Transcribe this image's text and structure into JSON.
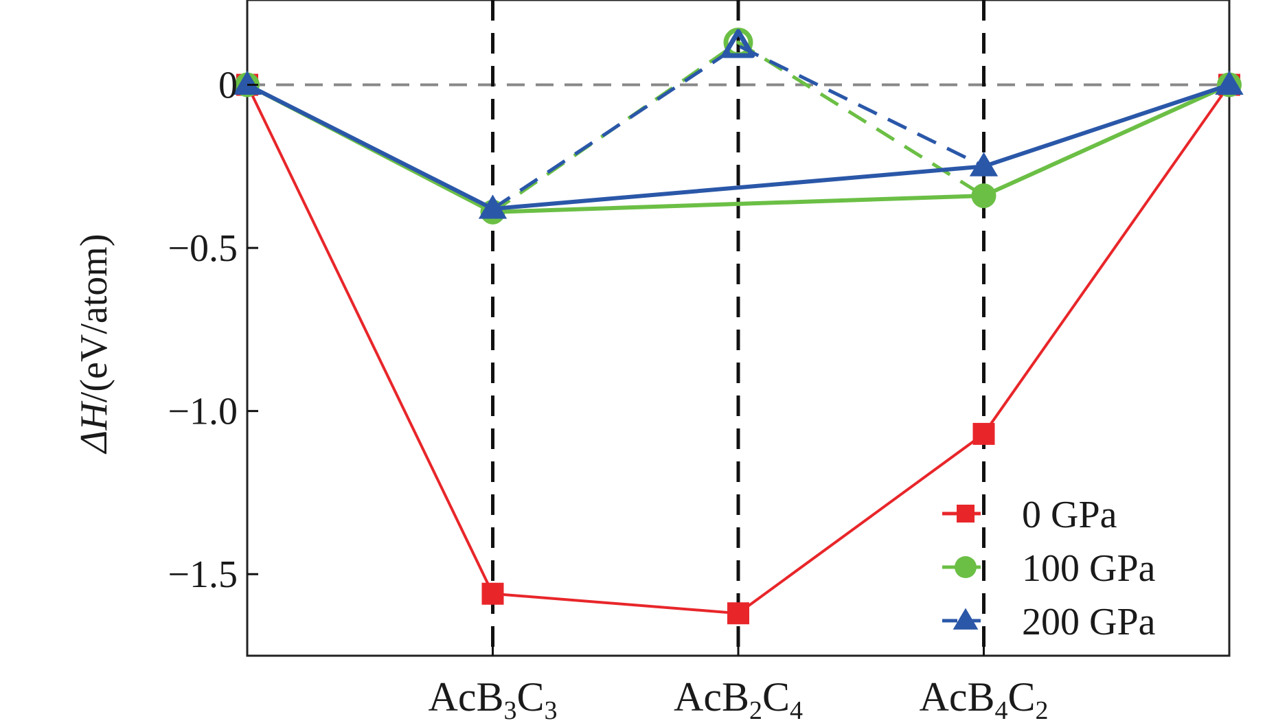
{
  "chart_data": {
    "type": "line",
    "title": "",
    "ylabel_symbol": "ΔH",
    "ylabel_unit": "/(eV/atom)",
    "xlabel": "",
    "ylim": [
      -1.75,
      0.26
    ],
    "yticks": [
      0,
      -0.5,
      -1.0,
      -1.5
    ],
    "ytick_labels": [
      "0",
      "−0.5",
      "−1.0",
      "−1.5"
    ],
    "x": [
      0,
      1,
      2,
      3,
      4
    ],
    "xlim": [
      0,
      4
    ],
    "categories": [
      {
        "base": "AcB",
        "n1": "3",
        "el2": "C",
        "n2": "3",
        "x": 1
      },
      {
        "base": "AcB",
        "n1": "2",
        "el2": "C",
        "n2": "4",
        "x": 2
      },
      {
        "base": "AcB",
        "n1": "4",
        "el2": "C",
        "n2": "2",
        "x": 3
      }
    ],
    "zero_line": true,
    "series": [
      {
        "name": "0 GPa",
        "color": "#e8262a",
        "marker": "square",
        "line_x": [
          0,
          1,
          2,
          3,
          4
        ],
        "line_y": [
          0,
          -1.56,
          -1.62,
          -1.07,
          0
        ],
        "points_x": [
          0,
          1,
          2,
          3,
          4
        ],
        "points_y": [
          0,
          -1.56,
          -1.62,
          -1.07,
          0
        ],
        "dashed_x": [],
        "dashed_y": []
      },
      {
        "name": "100 GPa",
        "color": "#6bbf45",
        "marker": "circle",
        "line_x": [
          0,
          1,
          3,
          4
        ],
        "line_y": [
          0,
          -0.39,
          -0.34,
          0
        ],
        "points_x": [
          0,
          1,
          2,
          3,
          4
        ],
        "points_y": [
          0,
          -0.39,
          0.13,
          -0.34,
          0
        ],
        "dashed_x": [
          1,
          2,
          3
        ],
        "dashed_y": [
          -0.39,
          0.13,
          -0.34
        ]
      },
      {
        "name": "200 GPa",
        "color": "#2a57a8",
        "marker": "triangle",
        "line_x": [
          0,
          1,
          3,
          4
        ],
        "line_y": [
          0,
          -0.38,
          -0.25,
          0
        ],
        "points_x": [
          0,
          1,
          2,
          3,
          4
        ],
        "points_y": [
          0,
          -0.38,
          0.12,
          -0.25,
          0
        ],
        "dashed_x": [
          1,
          2,
          3
        ],
        "dashed_y": [
          -0.38,
          0.12,
          -0.25
        ]
      }
    ],
    "legend_position": "bottom-right"
  }
}
